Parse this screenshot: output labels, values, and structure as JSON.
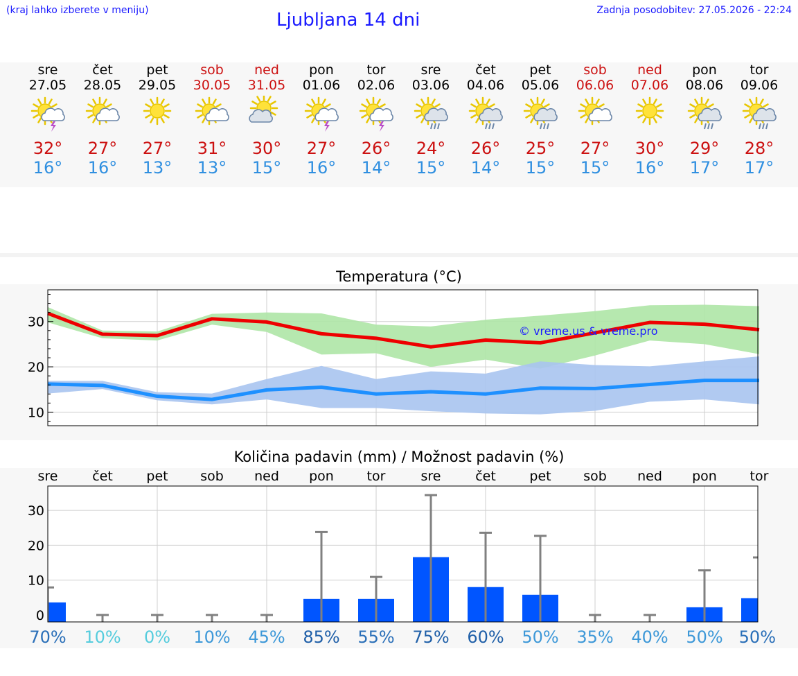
{
  "header": {
    "left_note": "(kraj lahko izberete v meniju)",
    "title": "Ljubljana 14 dni",
    "updated": "Zadnja posodobitev: 27.05.2026 - 22:24"
  },
  "colors": {
    "header_text": "#1a1aff",
    "max_temp": "#cc1111",
    "min_temp": "#2f8fe0",
    "max_line": "#ee0000",
    "max_band": "#aee6a6",
    "min_line": "#1e90ff",
    "min_band": "#a9c4ef",
    "precip_bar": "#0055ff",
    "error_bar": "#808080"
  },
  "days": [
    {
      "name": "sre",
      "date": "27.05",
      "icon": "sun-cloud-thunder-icon",
      "tmax": "32°",
      "tmin": "16°",
      "weekend": false
    },
    {
      "name": "čet",
      "date": "28.05",
      "icon": "sun-cloud-icon",
      "tmax": "27°",
      "tmin": "16°",
      "weekend": false
    },
    {
      "name": "pet",
      "date": "29.05",
      "icon": "sun-icon",
      "tmax": "27°",
      "tmin": "13°",
      "weekend": false
    },
    {
      "name": "sob",
      "date": "30.05",
      "icon": "sun-cloud-icon",
      "tmax": "31°",
      "tmin": "13°",
      "weekend": true
    },
    {
      "name": "ned",
      "date": "31.05",
      "icon": "cloud-sun-icon",
      "tmax": "30°",
      "tmin": "15°",
      "weekend": true
    },
    {
      "name": "pon",
      "date": "01.06",
      "icon": "sun-cloud-thunder-icon",
      "tmax": "27°",
      "tmin": "16°",
      "weekend": false
    },
    {
      "name": "tor",
      "date": "02.06",
      "icon": "sun-cloud-thunder-icon",
      "tmax": "26°",
      "tmin": "14°",
      "weekend": false
    },
    {
      "name": "sre",
      "date": "03.06",
      "icon": "sun-cloud-rain-icon",
      "tmax": "24°",
      "tmin": "15°",
      "weekend": false
    },
    {
      "name": "čet",
      "date": "04.06",
      "icon": "sun-cloud-rain-icon",
      "tmax": "26°",
      "tmin": "14°",
      "weekend": false
    },
    {
      "name": "pet",
      "date": "05.06",
      "icon": "sun-cloud-rain-icon",
      "tmax": "25°",
      "tmin": "15°",
      "weekend": false
    },
    {
      "name": "sob",
      "date": "06.06",
      "icon": "sun-cloud-icon",
      "tmax": "27°",
      "tmin": "15°",
      "weekend": true
    },
    {
      "name": "ned",
      "date": "07.06",
      "icon": "sun-icon",
      "tmax": "30°",
      "tmin": "16°",
      "weekend": true
    },
    {
      "name": "pon",
      "date": "08.06",
      "icon": "sun-cloud-rain-icon",
      "tmax": "29°",
      "tmin": "17°",
      "weekend": false
    },
    {
      "name": "tor",
      "date": "09.06",
      "icon": "sun-cloud-rain-icon",
      "tmax": "28°",
      "tmin": "17°",
      "weekend": false
    }
  ],
  "watermark": "© vreme.us & vreme.pro",
  "chart_data": [
    {
      "type": "line",
      "title": "Temperatura (°C)",
      "x": [
        "27.05",
        "28.05",
        "29.05",
        "30.05",
        "31.05",
        "01.06",
        "02.06",
        "03.06",
        "04.06",
        "05.06",
        "06.06",
        "07.06",
        "08.06",
        "09.06"
      ],
      "ylim": [
        7,
        37
      ],
      "yticks": [
        10,
        20,
        30
      ],
      "grid": true,
      "series": [
        {
          "values": [
            31.8,
            27.2,
            26.9,
            30.6,
            29.9,
            27.3,
            26.3,
            24.4,
            25.9,
            25.3,
            27.5,
            29.8,
            29.4,
            28.2
          ],
          "band_low": [
            29.8,
            26.3,
            25.8,
            29.3,
            27.7,
            22.7,
            23.0,
            20.0,
            21.6,
            19.6,
            22.5,
            25.8,
            25.0,
            22.8
          ],
          "band_high": [
            33.2,
            28.0,
            27.8,
            31.7,
            32.0,
            31.8,
            29.3,
            28.9,
            30.4,
            31.3,
            32.3,
            33.6,
            33.7,
            33.4
          ]
        },
        {
          "values": [
            16.2,
            15.9,
            13.5,
            12.8,
            14.9,
            15.5,
            14.0,
            14.5,
            14.0,
            15.3,
            15.2,
            16.1,
            17.0,
            17.0
          ],
          "band_low": [
            14.1,
            15.1,
            12.6,
            11.7,
            12.8,
            10.9,
            10.9,
            10.2,
            9.7,
            9.5,
            10.3,
            12.3,
            12.8,
            11.7
          ],
          "band_high": [
            16.9,
            16.9,
            14.4,
            14.1,
            17.3,
            20.2,
            17.3,
            19.0,
            18.5,
            21.2,
            20.4,
            20.1,
            21.2,
            22.3
          ]
        }
      ]
    },
    {
      "type": "bar",
      "title": "Količina padavin (mm) / Možnost padavin (%)",
      "categories": [
        "sre",
        "čet",
        "pet",
        "sob",
        "ned",
        "pon",
        "tor",
        "sre",
        "čet",
        "pet",
        "sob",
        "ned",
        "pon",
        "tor"
      ],
      "values": [
        3.6,
        0,
        0,
        0,
        0,
        4.6,
        4.6,
        16.6,
        8.0,
        5.8,
        0,
        0,
        2.2,
        4.8
      ],
      "error_high": [
        7.9,
        0,
        0,
        0,
        0,
        23.8,
        10.9,
        34.4,
        23.6,
        22.7,
        0,
        0,
        12.8,
        16.5
      ],
      "probability": [
        "70%",
        "10%",
        "0%",
        "10%",
        "45%",
        "85%",
        "55%",
        "75%",
        "60%",
        "50%",
        "35%",
        "40%",
        "50%",
        "50%"
      ],
      "probability_colors": [
        "#2a6fb8",
        "#55ccdd",
        "#55ccdd",
        "#3d98d8",
        "#3d98d8",
        "#1f5fa8",
        "#2a6fb8",
        "#1f5fa8",
        "#1f5fa8",
        "#3d98d8",
        "#3d98d8",
        "#3d98d8",
        "#3d98d8",
        "#2a6fb8"
      ],
      "ylim": [
        -2,
        37
      ],
      "yticks": [
        0,
        10,
        20,
        30
      ],
      "grid": true
    }
  ]
}
